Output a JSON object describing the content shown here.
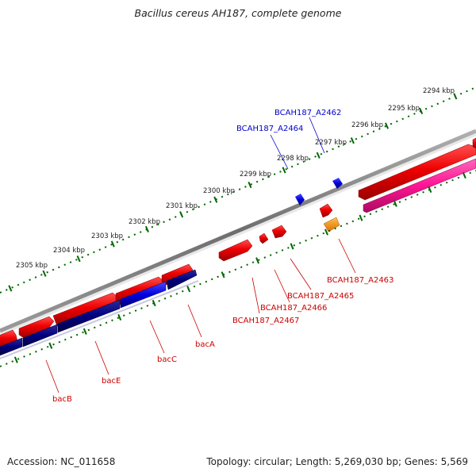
{
  "title": "Bacillus cereus AH187, complete genome",
  "footer": {
    "accession": "Accession: NC_011658",
    "summary": "Topology: circular; Length: 5,269,030 bp; Genes: 5,569"
  },
  "kbp_labels": [
    "2294 kbp",
    "2295 kbp",
    "2296 kbp",
    "2297 kbp",
    "2298 kbp",
    "2299 kbp",
    "2300 kbp",
    "2301 kbp",
    "2302 kbp",
    "2303 kbp",
    "2304 kbp",
    "2305 kbp"
  ],
  "features": [
    {
      "label": "BCAH187_A2462",
      "color": "#0000cc",
      "kind": "gene"
    },
    {
      "label": "BCAH187_A2464",
      "color": "#0000cc",
      "kind": "gene"
    },
    {
      "label": "BCAH187_A2463",
      "color": "#cc0000",
      "kind": "gene"
    },
    {
      "label": "BCAH187_A2465",
      "color": "#cc0000",
      "kind": "gene"
    },
    {
      "label": "BCAH187_A2466",
      "color": "#cc0000",
      "kind": "gene"
    },
    {
      "label": "BCAH187_A2467",
      "color": "#cc0000",
      "kind": "gene"
    },
    {
      "label": "bacA",
      "color": "#cc0000",
      "kind": "gene"
    },
    {
      "label": "bacC",
      "color": "#cc0000",
      "kind": "gene"
    },
    {
      "label": "bacE",
      "color": "#cc0000",
      "kind": "gene"
    },
    {
      "label": "bacB",
      "color": "#cc0000",
      "kind": "gene"
    }
  ],
  "colors": {
    "backbone": "#888888",
    "forward_cds": "#ee0000",
    "reverse_cds": "#0022ee",
    "cds_strand2": "#000080",
    "cds_strand2_alt": "#0000ee",
    "rna": "#ff3399",
    "orange_feature": "#ff9900",
    "ticks": "#006600"
  }
}
